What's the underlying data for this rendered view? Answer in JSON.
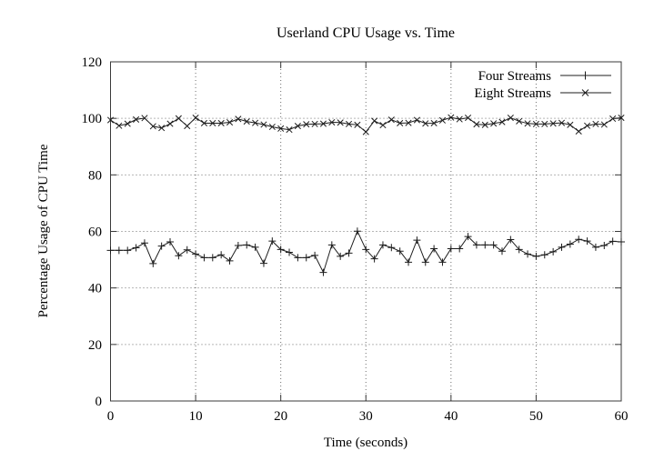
{
  "title": "Userland CPU Usage vs. Time",
  "axes": {
    "xlabel": "Time (seconds)",
    "ylabel": "Percentage Usage of CPU Time"
  },
  "legend": {
    "position": "top-right",
    "items": [
      {
        "label": "Four Streams",
        "marker": "plus"
      },
      {
        "label": "Eight Streams",
        "marker": "x"
      }
    ]
  },
  "colors": {
    "background": "#ffffff",
    "line": "#1c1c1c",
    "grid": "#6e6e6e",
    "border": "#3a3a3a",
    "text": "#000000"
  },
  "chart_data": {
    "type": "line",
    "title": "Userland CPU Usage vs. Time",
    "xlabel": "Time (seconds)",
    "ylabel": "Percentage Usage of CPU Time",
    "xlim": [
      0,
      60
    ],
    "ylim": [
      0,
      120
    ],
    "xticks": [
      0,
      10,
      20,
      30,
      40,
      50,
      60
    ],
    "yticks": [
      0,
      20,
      40,
      60,
      80,
      100,
      120
    ],
    "grid": true,
    "grid_style": "dotted",
    "legend_position": "top-right",
    "x": [
      0,
      1,
      2,
      3,
      4,
      5,
      6,
      7,
      8,
      9,
      10,
      11,
      12,
      13,
      14,
      15,
      16,
      17,
      18,
      19,
      20,
      21,
      22,
      23,
      24,
      25,
      26,
      27,
      28,
      29,
      30,
      31,
      32,
      33,
      34,
      35,
      36,
      37,
      38,
      39,
      40,
      41,
      42,
      43,
      44,
      45,
      46,
      47,
      48,
      49,
      50,
      51,
      52,
      53,
      54,
      55,
      56,
      57,
      58,
      59,
      60
    ],
    "series": [
      {
        "name": "Four Streams",
        "marker": "plus",
        "values": [
          53.3,
          53.3,
          53.3,
          54.2,
          55.9,
          48.6,
          54.8,
          56.3,
          51.4,
          53.5,
          52.0,
          50.7,
          50.7,
          51.7,
          49.6,
          55.0,
          55.2,
          54.4,
          48.7,
          56.6,
          53.6,
          52.6,
          50.7,
          50.7,
          51.5,
          45.5,
          55.2,
          51.2,
          52.3,
          60.1,
          53.6,
          50.3,
          55.2,
          54.3,
          53.0,
          49.1,
          56.9,
          49.1,
          53.9,
          49.1,
          53.9,
          53.9,
          58.2,
          55.2,
          55.2,
          55.2,
          53.0,
          57.1,
          53.6,
          52.0,
          51.2,
          51.7,
          52.8,
          54.4,
          55.5,
          57.2,
          56.6,
          54.4,
          55.0,
          56.5,
          56.3
        ]
      },
      {
        "name": "Eight Streams",
        "marker": "x",
        "values": [
          99.4,
          97.4,
          98.1,
          99.6,
          100.1,
          97.2,
          96.6,
          98.1,
          100.0,
          97.3,
          100.2,
          98.3,
          98.3,
          98.3,
          98.6,
          99.8,
          98.9,
          98.4,
          97.8,
          97.0,
          96.4,
          96.0,
          97.3,
          97.9,
          98.0,
          98.1,
          98.6,
          98.5,
          98.0,
          97.7,
          95.2,
          99.1,
          97.6,
          99.5,
          98.3,
          98.4,
          99.4,
          98.2,
          98.3,
          99.3,
          100.3,
          99.7,
          100.2,
          97.9,
          97.7,
          98.2,
          98.7,
          100.2,
          99.0,
          98.2,
          98.0,
          98.0,
          98.2,
          98.4,
          97.7,
          95.4,
          97.4,
          98.0,
          97.8,
          99.9,
          100.2
        ]
      }
    ]
  }
}
